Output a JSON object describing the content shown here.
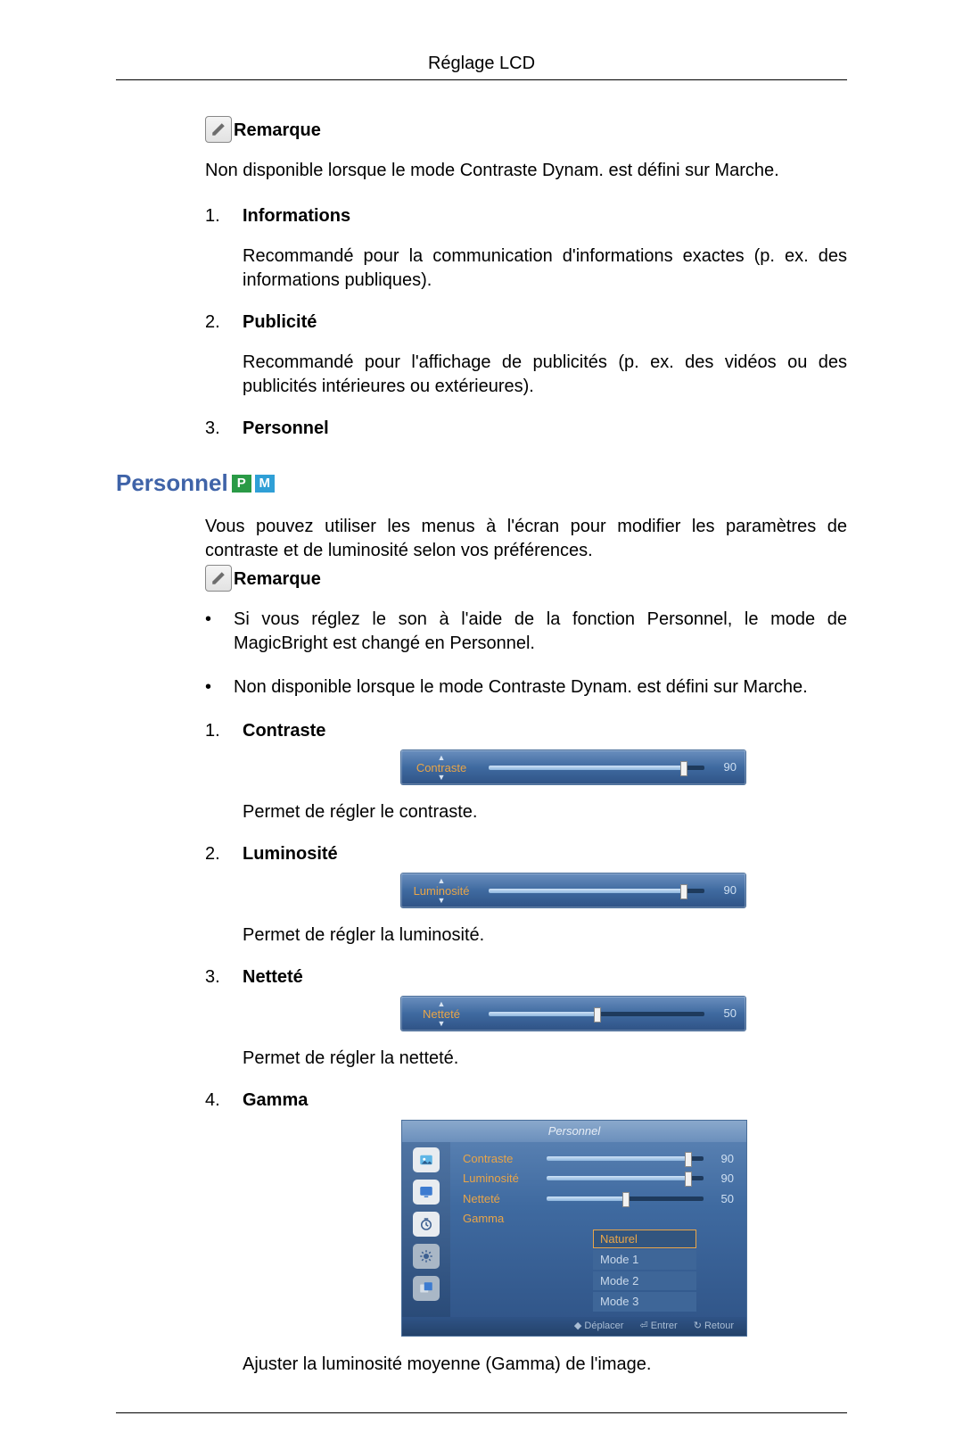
{
  "page": {
    "title": "Réglage LCD"
  },
  "remarque1": {
    "label": "Remarque",
    "text": "Non disponible lorsque le mode Contraste Dynam. est défini sur Marche."
  },
  "modes": {
    "items": [
      {
        "num": "1.",
        "label": "Informations",
        "body": "Recommandé pour la communication d'informations exactes (p. ex. des informations publiques)."
      },
      {
        "num": "2.",
        "label": "Publicité",
        "body": "Recommandé pour l'affichage de publicités (p. ex. des vidéos ou des publicités intérieures ou extérieures)."
      },
      {
        "num": "3.",
        "label": "Personnel",
        "body": ""
      }
    ]
  },
  "personnel": {
    "title": "Personnel",
    "badge_p": "P",
    "badge_m": "M",
    "intro": "Vous pouvez utiliser les menus à l'écran pour modifier les paramètres de contraste et de luminosité selon vos préférences.",
    "remarque_label": "Remarque",
    "bullets": [
      "Si vous réglez le son à l'aide de la fonction Personnel, le mode de MagicBright est changé en Personnel.",
      "Non disponible lorsque le mode Contraste Dynam. est défini sur Marche."
    ],
    "sliders": [
      {
        "num": "1.",
        "label": "Contraste",
        "osd_label": "Contraste",
        "value": 90,
        "max": 100,
        "desc": "Permet de régler le contraste."
      },
      {
        "num": "2.",
        "label": "Luminosité",
        "osd_label": "Luminosité",
        "value": 90,
        "max": 100,
        "desc": "Permet de régler la luminosité."
      },
      {
        "num": "3.",
        "label": "Netteté",
        "osd_label": "Netteté",
        "value": 50,
        "max": 100,
        "desc": "Permet de régler la netteté."
      }
    ],
    "gamma": {
      "num": "4.",
      "label": "Gamma",
      "menu_title": "Personnel",
      "rows": [
        {
          "label": "Contraste",
          "value": 90,
          "max": 100
        },
        {
          "label": "Luminosité",
          "value": 90,
          "max": 100
        },
        {
          "label": "Netteté",
          "value": 50,
          "max": 100
        },
        {
          "label": "Gamma",
          "value": null,
          "max": null
        }
      ],
      "options": [
        "Naturel",
        "Mode 1",
        "Mode 2",
        "Mode 3"
      ],
      "selected_index": 0,
      "footer": {
        "move": "Déplacer",
        "enter": "Entrer",
        "return": "Retour"
      },
      "desc": "Ajuster la luminosité moyenne (Gamma) de l'image."
    }
  },
  "style": {
    "colors": {
      "heading": "#3f63a8",
      "osd_bg_top": "#6a8fbe",
      "osd_bg_bottom": "#2f5386",
      "osd_accent": "#e9a548",
      "osd_value": "#cfe0f2",
      "track_bg": "#1e3a5c",
      "track_fill_top": "#cfe3f7",
      "track_fill_bottom": "#8eb6dd",
      "badge_p": "#2a9a46",
      "badge_m": "#2f9fd6"
    },
    "fontsize": {
      "body": 20,
      "section_title": 26,
      "osd": 13
    }
  }
}
